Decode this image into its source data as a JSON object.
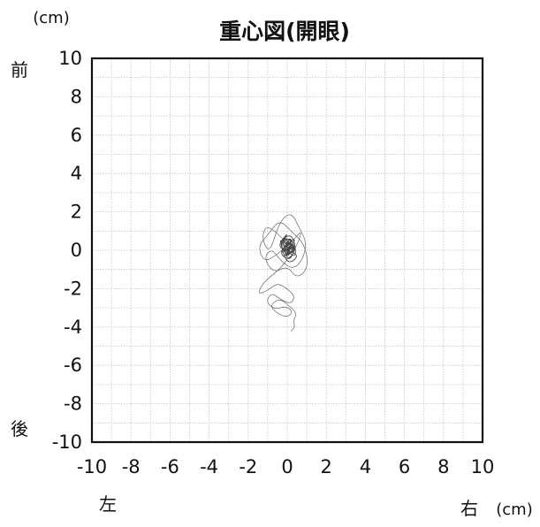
{
  "chart_data": {
    "type": "line",
    "title": "重心図(開眼)",
    "y_unit": "(cm)",
    "x_unit": "(cm)",
    "y_top_label": "前",
    "y_bottom_label": "後",
    "x_left_label": "左",
    "x_right_label": "右",
    "xlim": [
      -10,
      10
    ],
    "ylim": [
      -10,
      10
    ],
    "x_ticks": [
      "-10",
      "-8",
      "-6",
      "-4",
      "-2",
      "0",
      "2",
      "4",
      "6",
      "8",
      "10"
    ],
    "y_ticks": [
      "10",
      "8",
      "6",
      "4",
      "2",
      "0",
      "-2",
      "-4",
      "-6",
      "-8",
      "-10"
    ],
    "grid": true,
    "grid_step": 1,
    "colors": {
      "trace": "#333333",
      "frame": "#111111",
      "grid": "#c4c4c4"
    },
    "series": [
      {
        "x": [
          0.0,
          0.3,
          -0.4,
          0.5,
          -0.2,
          0.6,
          -0.5,
          0.2,
          0.4,
          -0.3,
          0.1,
          -0.6,
          0.7,
          0.0,
          -0.4,
          0.3,
          0.5,
          -0.2,
          0.2,
          -0.5,
          0.6,
          0.0,
          -0.3,
          0.4,
          -0.1,
          0.3,
          -0.6,
          0.5,
          0.1,
          -0.2,
          0.4,
          -0.4,
          0.6,
          0.0,
          0.3,
          -0.5,
          0.2,
          -0.1,
          0.5,
          -0.3,
          0.1
        ],
        "y": [
          0.0,
          0.5,
          0.7,
          0.2,
          -0.4,
          0.8,
          -0.1,
          -0.6,
          0.4,
          0.3,
          1.0,
          0.1,
          -0.2,
          -0.8,
          0.5,
          0.9,
          -0.5,
          0.2,
          0.6,
          -0.3,
          0.4,
          -0.7,
          0.8,
          0.1,
          -0.4,
          0.3,
          0.6,
          -0.2,
          0.9,
          -0.6,
          0.5,
          0.0,
          0.2,
          -0.3,
          0.7,
          0.4,
          -0.5,
          0.6,
          0.0,
          0.3,
          -0.2
        ]
      },
      {
        "x": [
          0.1,
          -0.5,
          -1.1,
          -1.3,
          -0.9,
          -0.4,
          0.2,
          0.6,
          1.0,
          0.8,
          0.3,
          -0.3,
          -0.8,
          -1.2,
          -0.7,
          0.0,
          0.5,
          1.1,
          0.9,
          0.2,
          -0.4,
          -1.0,
          -1.5,
          -1.2,
          -0.6,
          0.3,
          0.8,
          0.4,
          -0.2,
          0.1
        ],
        "y": [
          0.2,
          0.9,
          1.3,
          0.6,
          -0.2,
          1.5,
          2.0,
          1.2,
          0.4,
          -0.5,
          -1.0,
          -0.6,
          0.1,
          -0.4,
          -1.2,
          -0.8,
          -1.5,
          -0.9,
          0.3,
          1.0,
          1.6,
          0.8,
          0.2,
          -0.6,
          -0.3,
          0.5,
          1.1,
          0.0,
          -0.4,
          0.1
        ]
      },
      {
        "x": [
          0.0,
          -0.4,
          -0.9,
          -1.3,
          -1.5,
          -1.0,
          -0.5,
          0.0,
          0.4,
          0.2,
          -0.3,
          -0.8,
          -1.1,
          -0.6,
          -0.1,
          0.3,
          0.0,
          -0.5,
          -0.9,
          -0.4,
          0.1,
          0.5,
          0.3,
          0.4,
          0.2
        ],
        "y": [
          -0.5,
          -1.0,
          -1.4,
          -1.8,
          -2.3,
          -2.1,
          -1.7,
          -2.0,
          -2.4,
          -2.8,
          -2.6,
          -2.2,
          -2.7,
          -3.1,
          -2.9,
          -3.2,
          -3.5,
          -3.3,
          -2.9,
          -2.5,
          -2.9,
          -3.3,
          -3.7,
          -4.0,
          -4.2
        ]
      }
    ]
  }
}
